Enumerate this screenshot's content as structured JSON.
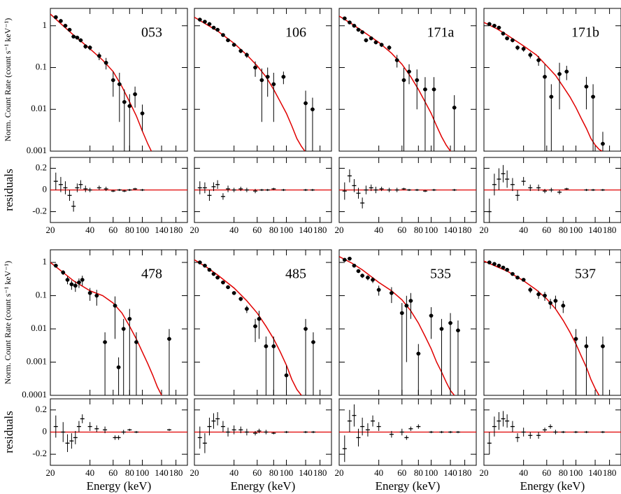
{
  "chart_data": [
    {
      "type": "spectrum",
      "label": "053",
      "ylabel": "Norm. Count Rate (count s⁻¹ keV⁻¹)",
      "residual_label": "residuals",
      "x": [
        22,
        24,
        26,
        28,
        30,
        32,
        34,
        37,
        40,
        47,
        53,
        60,
        67,
        73,
        80,
        88,
        100
      ],
      "values": [
        1.6,
        1.3,
        1.0,
        0.8,
        0.55,
        0.52,
        0.45,
        0.32,
        0.3,
        0.19,
        0.13,
        0.05,
        0.04,
        0.015,
        0.012,
        0.023,
        0.008
      ],
      "errors": [
        0.1,
        0.08,
        0.07,
        0.06,
        0.05,
        0.05,
        0.05,
        0.04,
        0.04,
        0.04,
        0.04,
        0.03,
        0.035,
        0.015,
        0.011,
        0.012,
        0.005
      ],
      "model_x": [
        20,
        25,
        30,
        35,
        40,
        50,
        60,
        70,
        80,
        90,
        100,
        110,
        117
      ],
      "model_values": [
        1.9,
        1.0,
        0.6,
        0.4,
        0.28,
        0.15,
        0.08,
        0.035,
        0.015,
        0.007,
        0.003,
        0.0015,
        0.001
      ],
      "residuals": [
        0.08,
        0.05,
        0.02,
        -0.05,
        -0.15,
        0.02,
        0.05,
        0.01,
        0.0,
        0.02,
        0.01,
        -0.01,
        0.0,
        -0.01,
        0.0,
        0.01,
        0.0
      ],
      "residual_errors": [
        0.08,
        0.07,
        0.06,
        0.05,
        0.05,
        0.04,
        0.04,
        0.03,
        0.02,
        0.02,
        0.02,
        0.01,
        0.01,
        0.01,
        0.01,
        0.01,
        0.01
      ],
      "xlim": [
        20,
        220
      ],
      "xticks": [
        20,
        40,
        60,
        80,
        100,
        140,
        180
      ],
      "ylim": [
        0.001,
        2.6
      ],
      "yticks": [
        0.001,
        0.01,
        0.1,
        1
      ],
      "residual_ylim": [
        -0.3,
        0.3
      ],
      "residual_yticks": [
        -0.2,
        0,
        0.2
      ],
      "log_x": true,
      "log_y": true,
      "color": "#000000",
      "model_color": "#e00000"
    },
    {
      "type": "spectrum",
      "label": "106",
      "x": [
        22,
        24,
        26,
        28,
        30,
        33,
        36,
        40,
        45,
        50,
        58,
        65,
        72,
        80,
        95,
        140,
        158
      ],
      "values": [
        1.4,
        1.25,
        1.1,
        0.9,
        0.8,
        0.6,
        0.45,
        0.35,
        0.25,
        0.2,
        0.1,
        0.05,
        0.06,
        0.04,
        0.06,
        0.014,
        0.01
      ],
      "errors": [
        0.08,
        0.07,
        0.06,
        0.05,
        0.05,
        0.04,
        0.04,
        0.03,
        0.03,
        0.03,
        0.04,
        0.045,
        0.04,
        0.035,
        0.02,
        0.014,
        0.009
      ],
      "model_x": [
        20,
        25,
        30,
        40,
        50,
        60,
        70,
        80,
        90,
        100,
        110,
        120,
        130,
        138
      ],
      "model_values": [
        1.6,
        1.05,
        0.75,
        0.38,
        0.2,
        0.11,
        0.06,
        0.03,
        0.015,
        0.008,
        0.004,
        0.002,
        0.0013,
        0.001
      ],
      "residuals": [
        0.02,
        0.02,
        -0.05,
        0.03,
        0.05,
        -0.06,
        0.01,
        0.0,
        0.01,
        0.0,
        -0.01,
        0.0,
        0.0,
        0.01,
        0.0,
        0.0,
        0.0
      ],
      "residual_errors": [
        0.06,
        0.05,
        0.05,
        0.04,
        0.04,
        0.03,
        0.03,
        0.02,
        0.02,
        0.02,
        0.02,
        0.01,
        0.01,
        0.01,
        0.01,
        0.01,
        0.01
      ],
      "xlim": [
        20,
        220
      ],
      "xticks": [
        20,
        40,
        60,
        80,
        100,
        140,
        180
      ],
      "ylim": [
        0.001,
        2.6
      ],
      "yticks": [
        0.001,
        0.01,
        0.1,
        1
      ],
      "residual_ylim": [
        -0.3,
        0.3
      ],
      "residual_yticks": [
        -0.2,
        0,
        0.2
      ],
      "log_x": true,
      "log_y": true,
      "color": "#000000",
      "model_color": "#e00000"
    },
    {
      "type": "spectrum",
      "label": "171a",
      "x": [
        22,
        24,
        26,
        28,
        30,
        32,
        35,
        38,
        42,
        48,
        55,
        62,
        68,
        78,
        90,
        105,
        150
      ],
      "values": [
        1.5,
        1.2,
        1.0,
        0.8,
        0.7,
        0.45,
        0.5,
        0.4,
        0.35,
        0.3,
        0.15,
        0.05,
        0.08,
        0.05,
        0.03,
        0.03,
        0.011
      ],
      "errors": [
        0.09,
        0.08,
        0.07,
        0.06,
        0.05,
        0.05,
        0.05,
        0.04,
        0.04,
        0.04,
        0.05,
        0.049,
        0.04,
        0.04,
        0.029,
        0.029,
        0.0108
      ],
      "model_x": [
        20,
        25,
        30,
        40,
        50,
        60,
        70,
        80,
        90,
        100,
        110,
        120,
        130,
        140
      ],
      "model_values": [
        1.7,
        1.1,
        0.75,
        0.4,
        0.22,
        0.12,
        0.06,
        0.03,
        0.015,
        0.008,
        0.004,
        0.0022,
        0.0014,
        0.001
      ],
      "residuals": [
        -0.01,
        0.13,
        0.04,
        -0.03,
        -0.12,
        0.0,
        0.02,
        0.0,
        0.01,
        0.0,
        0.0,
        0.01,
        0.0,
        0.0,
        -0.01,
        0.0,
        0.0
      ],
      "residual_errors": [
        0.08,
        0.06,
        0.06,
        0.05,
        0.05,
        0.04,
        0.03,
        0.03,
        0.02,
        0.02,
        0.02,
        0.01,
        0.01,
        0.01,
        0.01,
        0.01,
        0.01
      ],
      "xlim": [
        20,
        220
      ],
      "xticks": [
        20,
        40,
        60,
        80,
        100,
        140,
        180
      ],
      "ylim": [
        0.001,
        2.6
      ],
      "yticks": [
        0.001,
        0.01,
        0.1,
        1
      ],
      "residual_ylim": [
        -0.3,
        0.3
      ],
      "residual_yticks": [
        -0.2,
        0,
        0.2
      ],
      "log_x": true,
      "log_y": true,
      "color": "#000000",
      "model_color": "#e00000"
    },
    {
      "type": "spectrum",
      "label": "171b",
      "x": [
        22,
        24,
        26,
        28,
        30,
        33,
        36,
        40,
        45,
        52,
        58,
        65,
        75,
        85,
        120,
        135,
        160
      ],
      "values": [
        1.1,
        1.0,
        0.9,
        0.65,
        0.5,
        0.45,
        0.3,
        0.28,
        0.2,
        0.15,
        0.06,
        0.02,
        0.07,
        0.08,
        0.035,
        0.02,
        0.0015
      ],
      "errors": [
        0.08,
        0.07,
        0.06,
        0.06,
        0.05,
        0.05,
        0.04,
        0.04,
        0.035,
        0.04,
        0.059,
        0.0199,
        0.06,
        0.03,
        0.025,
        0.0199,
        0.0014
      ],
      "model_x": [
        20,
        25,
        30,
        40,
        50,
        60,
        70,
        80,
        90,
        100,
        110,
        120,
        130,
        140,
        150,
        158
      ],
      "model_values": [
        1.2,
        0.85,
        0.6,
        0.33,
        0.2,
        0.11,
        0.065,
        0.035,
        0.02,
        0.011,
        0.006,
        0.0035,
        0.002,
        0.0014,
        0.0011,
        0.001
      ],
      "residuals": [
        -0.2,
        0.05,
        0.1,
        0.15,
        0.1,
        0.05,
        -0.05,
        0.08,
        0.02,
        0.02,
        -0.01,
        0.0,
        -0.02,
        0.01,
        0.0,
        0.0,
        0.0
      ],
      "residual_errors": [
        0.12,
        0.1,
        0.1,
        0.08,
        0.08,
        0.06,
        0.05,
        0.04,
        0.03,
        0.03,
        0.02,
        0.02,
        0.02,
        0.01,
        0.01,
        0.01,
        0.01
      ],
      "xlim": [
        20,
        220
      ],
      "xticks": [
        20,
        40,
        60,
        80,
        100,
        140,
        180
      ],
      "ylim": [
        0.001,
        2.6
      ],
      "yticks": [
        0.001,
        0.01,
        0.1,
        1
      ],
      "residual_ylim": [
        -0.3,
        0.3
      ],
      "residual_yticks": [
        -0.2,
        0,
        0.2
      ],
      "log_x": true,
      "log_y": true,
      "color": "#000000",
      "model_color": "#e00000"
    },
    {
      "type": "spectrum",
      "label": "478",
      "ylabel": "Norm. Count Rate (count s⁻¹ keV⁻¹)",
      "residual_label": "residuals",
      "xlabel": "Energy (keV)",
      "x": [
        22,
        25,
        27,
        29,
        31,
        33,
        35,
        40,
        45,
        52,
        62,
        66,
        72,
        80,
        90,
        160
      ],
      "values": [
        0.8,
        0.5,
        0.3,
        0.22,
        0.2,
        0.25,
        0.3,
        0.12,
        0.1,
        0.004,
        0.05,
        0.0007,
        0.01,
        0.02,
        0.004,
        0.005
      ],
      "errors": [
        0.06,
        0.08,
        0.08,
        0.07,
        0.07,
        0.08,
        0.1,
        0.05,
        0.05,
        0.0039,
        0.045,
        0.00069,
        0.0099,
        0.0199,
        0.0039,
        0.0049
      ],
      "model_x": [
        20,
        25,
        30,
        40,
        50,
        60,
        70,
        80,
        90,
        100,
        110,
        120,
        130,
        140
      ],
      "model_values": [
        1.0,
        0.5,
        0.28,
        0.14,
        0.1,
        0.06,
        0.03,
        0.012,
        0.005,
        0.002,
        0.0009,
        0.0004,
        0.00018,
        0.0001
      ],
      "residuals": [
        0.05,
        0.0,
        -0.1,
        -0.08,
        -0.05,
        0.05,
        0.12,
        0.05,
        0.03,
        0.02,
        -0.05,
        -0.05,
        0.0,
        0.02,
        0.0,
        0.02
      ],
      "residual_errors": [
        0.1,
        0.09,
        0.08,
        0.07,
        0.06,
        0.05,
        0.04,
        0.04,
        0.03,
        0.03,
        0.02,
        0.02,
        0.02,
        0.01,
        0.01,
        0.01
      ],
      "xlim": [
        20,
        220
      ],
      "xticks": [
        20,
        40,
        60,
        80,
        100,
        140,
        180
      ],
      "ylim": [
        0.0001,
        2.4
      ],
      "yticks": [
        0.0001,
        0.001,
        0.01,
        0.1,
        1
      ],
      "residual_ylim": [
        -0.3,
        0.3
      ],
      "residual_yticks": [
        -0.2,
        0,
        0.2
      ],
      "log_x": true,
      "log_y": true,
      "color": "#000000",
      "model_color": "#e00000"
    },
    {
      "type": "spectrum",
      "label": "485",
      "xlabel": "Energy (keV)",
      "x": [
        22,
        24,
        26,
        28,
        30,
        33,
        36,
        40,
        45,
        50,
        58,
        62,
        70,
        80,
        100,
        140,
        160
      ],
      "values": [
        1.0,
        0.8,
        0.6,
        0.45,
        0.35,
        0.25,
        0.18,
        0.12,
        0.08,
        0.04,
        0.012,
        0.02,
        0.003,
        0.003,
        0.0004,
        0.01,
        0.004
      ],
      "errors": [
        0.05,
        0.04,
        0.04,
        0.03,
        0.03,
        0.02,
        0.02,
        0.015,
        0.012,
        0.01,
        0.008,
        0.015,
        0.0029,
        0.0029,
        0.00039,
        0.0099,
        0.0039
      ],
      "model_x": [
        20,
        25,
        30,
        40,
        50,
        60,
        70,
        80,
        90,
        100,
        110,
        120,
        130
      ],
      "model_values": [
        1.2,
        0.7,
        0.42,
        0.17,
        0.07,
        0.03,
        0.012,
        0.005,
        0.002,
        0.0008,
        0.0003,
        0.00015,
        0.0001
      ],
      "residuals": [
        -0.05,
        -0.1,
        0.05,
        0.1,
        0.12,
        0.05,
        0.0,
        0.02,
        0.02,
        0.0,
        -0.01,
        0.01,
        0.0,
        -0.01,
        0.0,
        0.0,
        0.0
      ],
      "residual_errors": [
        0.1,
        0.09,
        0.08,
        0.07,
        0.06,
        0.05,
        0.04,
        0.04,
        0.03,
        0.03,
        0.02,
        0.02,
        0.02,
        0.01,
        0.01,
        0.01,
        0.01
      ],
      "xlim": [
        20,
        220
      ],
      "xticks": [
        20,
        40,
        60,
        80,
        100,
        140,
        180
      ],
      "ylim": [
        0.0001,
        2.4
      ],
      "yticks": [
        0.0001,
        0.001,
        0.01,
        0.1,
        1
      ],
      "residual_ylim": [
        -0.3,
        0.3
      ],
      "residual_yticks": [
        -0.2,
        0,
        0.2
      ],
      "log_x": true,
      "log_y": true,
      "color": "#000000",
      "model_color": "#e00000"
    },
    {
      "type": "spectrum",
      "label": "535",
      "xlabel": "Energy (keV)",
      "x": [
        22,
        24,
        26,
        28,
        30,
        33,
        36,
        40,
        50,
        60,
        65,
        70,
        80,
        100,
        120,
        140,
        160
      ],
      "values": [
        1.2,
        1.3,
        0.8,
        0.55,
        0.4,
        0.35,
        0.3,
        0.15,
        0.12,
        0.03,
        0.05,
        0.07,
        0.0018,
        0.025,
        0.01,
        0.015,
        0.009
      ],
      "errors": [
        0.1,
        0.1,
        0.08,
        0.07,
        0.06,
        0.06,
        0.06,
        0.05,
        0.06,
        0.0299,
        0.049,
        0.05,
        0.0017,
        0.02,
        0.0099,
        0.0149,
        0.0089
      ],
      "model_x": [
        20,
        25,
        30,
        40,
        50,
        60,
        70,
        80,
        90,
        100,
        110,
        120,
        130,
        140,
        150
      ],
      "model_values": [
        1.5,
        0.95,
        0.6,
        0.25,
        0.14,
        0.075,
        0.035,
        0.015,
        0.006,
        0.0025,
        0.001,
        0.0005,
        0.00025,
        0.00014,
        0.0001
      ],
      "residuals": [
        -0.15,
        0.1,
        0.15,
        -0.05,
        0.05,
        0.02,
        0.1,
        0.05,
        -0.02,
        0.0,
        -0.05,
        0.03,
        0.05,
        0.0,
        0.0,
        0.0,
        0.0
      ],
      "residual_errors": [
        0.12,
        0.1,
        0.1,
        0.08,
        0.08,
        0.06,
        0.05,
        0.04,
        0.03,
        0.03,
        0.02,
        0.02,
        0.02,
        0.01,
        0.01,
        0.01,
        0.01
      ],
      "xlim": [
        20,
        220
      ],
      "xticks": [
        20,
        40,
        60,
        80,
        100,
        140,
        180
      ],
      "ylim": [
        0.0001,
        2.4
      ],
      "yticks": [
        0.0001,
        0.001,
        0.01,
        0.1,
        1
      ],
      "residual_ylim": [
        -0.3,
        0.3
      ],
      "residual_yticks": [
        -0.2,
        0,
        0.2
      ],
      "log_x": true,
      "log_y": true,
      "color": "#000000",
      "model_color": "#e00000"
    },
    {
      "type": "spectrum",
      "label": "537",
      "xlabel": "Energy (keV)",
      "x": [
        22,
        24,
        26,
        28,
        30,
        33,
        36,
        40,
        45,
        52,
        58,
        64,
        70,
        80,
        100,
        120,
        160
      ],
      "values": [
        1.0,
        0.9,
        0.8,
        0.7,
        0.6,
        0.45,
        0.35,
        0.3,
        0.15,
        0.11,
        0.1,
        0.06,
        0.07,
        0.05,
        0.005,
        0.003,
        0.003
      ],
      "errors": [
        0.06,
        0.05,
        0.05,
        0.04,
        0.04,
        0.03,
        0.03,
        0.03,
        0.03,
        0.03,
        0.03,
        0.02,
        0.03,
        0.02,
        0.0049,
        0.0029,
        0.0029
      ],
      "model_x": [
        20,
        25,
        30,
        40,
        50,
        60,
        70,
        80,
        90,
        100,
        110,
        120,
        130,
        140,
        150
      ],
      "model_values": [
        1.1,
        0.75,
        0.55,
        0.28,
        0.15,
        0.08,
        0.04,
        0.018,
        0.008,
        0.0035,
        0.0015,
        0.0007,
        0.0003,
        0.00016,
        0.0001
      ],
      "residuals": [
        -0.1,
        0.05,
        0.1,
        0.12,
        0.1,
        0.05,
        -0.05,
        0.0,
        -0.03,
        -0.03,
        0.02,
        0.05,
        0.0,
        0.0,
        0.0,
        0.0,
        0.0
      ],
      "residual_errors": [
        0.1,
        0.09,
        0.08,
        0.07,
        0.06,
        0.05,
        0.04,
        0.04,
        0.03,
        0.03,
        0.02,
        0.02,
        0.02,
        0.01,
        0.01,
        0.01,
        0.01
      ],
      "xlim": [
        20,
        220
      ],
      "xticks": [
        20,
        40,
        60,
        80,
        100,
        140,
        180
      ],
      "ylim": [
        0.0001,
        2.4
      ],
      "yticks": [
        0.0001,
        0.001,
        0.01,
        0.1,
        1
      ],
      "residual_ylim": [
        -0.3,
        0.3
      ],
      "residual_yticks": [
        -0.2,
        0,
        0.2
      ],
      "log_x": true,
      "log_y": true,
      "color": "#000000",
      "model_color": "#e00000"
    }
  ]
}
